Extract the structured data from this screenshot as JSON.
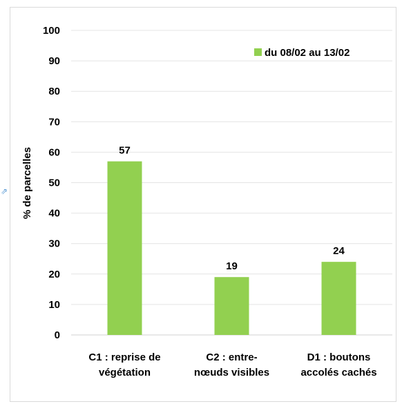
{
  "chart_data": {
    "type": "bar",
    "title": "",
    "xlabel": "",
    "ylabel": "% de parcelles",
    "ylim": [
      0,
      100
    ],
    "yticks": [
      0,
      10,
      20,
      30,
      40,
      50,
      60,
      70,
      80,
      90,
      100
    ],
    "grid": true,
    "legend_position": "top-right",
    "categories": [
      [
        "C1 : reprise de",
        "végétation"
      ],
      [
        "C2 : entre-",
        "nœuds visibles"
      ],
      [
        "D1 : boutons",
        "accolés cachés"
      ]
    ],
    "series": [
      {
        "name": "du 08/02 au 13/02",
        "values": [
          57,
          19,
          24
        ],
        "color": "#92d050"
      }
    ],
    "data_labels": [
      "57",
      "19",
      "24"
    ]
  },
  "decor": {
    "side_glyph": "⇗",
    "side_glyph_icon": "arrow-icon"
  }
}
